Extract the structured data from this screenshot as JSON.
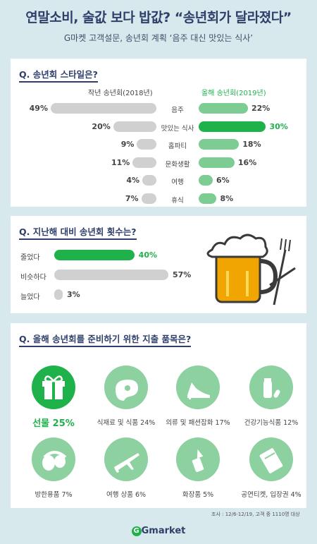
{
  "header": {
    "title": "연말소비, 술값 보다 밥값? “송년회가 달라졌다”",
    "subtitle": "G마켓 고객설문, 송년회 계획 ‘음주 대신 맛있는 식사’"
  },
  "q1": {
    "question": "Q. 송년회 스타일은?",
    "left_header": "작년 송년회(2018년)",
    "right_header": "올해 송년회(2019년)",
    "rows": [
      {
        "label": "음주",
        "prev": 49,
        "prev_text": "49%",
        "curr": 22,
        "curr_text": "22%"
      },
      {
        "label": "맛있는 식사",
        "prev": 20,
        "prev_text": "20%",
        "curr": 30,
        "curr_text": "30%"
      },
      {
        "label": "홈파티",
        "prev": 9,
        "prev_text": "9%",
        "curr": 18,
        "curr_text": "18%"
      },
      {
        "label": "문화생활",
        "prev": 11,
        "prev_text": "11%",
        "curr": 16,
        "curr_text": "16%"
      },
      {
        "label": "여행",
        "prev": 4,
        "prev_text": "4%",
        "curr": 6,
        "curr_text": "6%"
      },
      {
        "label": "휴식",
        "prev": 7,
        "prev_text": "7%",
        "curr": 8,
        "curr_text": "8%"
      }
    ]
  },
  "q2": {
    "question": "Q. 지난해 대비 송년회 횟수는?",
    "rows": [
      {
        "label": "줄었다",
        "value": 40,
        "text": "40%"
      },
      {
        "label": "비슷하다",
        "value": 57,
        "text": "57%"
      },
      {
        "label": "늘었다",
        "value": 3,
        "text": "3%"
      }
    ]
  },
  "q3": {
    "question": "Q. 올해 송년회를 준비하기 위한 지출 품목은?",
    "items": [
      {
        "label": "선물 25%",
        "icon": "gift-icon"
      },
      {
        "label": "식재료 및 식품 24%",
        "icon": "steak-icon"
      },
      {
        "label": "의류 및 패션잡화 17%",
        "icon": "shoe-icon"
      },
      {
        "label": "건강기능식품 12%",
        "icon": "supplement-icon"
      },
      {
        "label": "방한용품 7%",
        "icon": "earmuff-icon"
      },
      {
        "label": "여행 상품 6%",
        "icon": "airplane-icon"
      },
      {
        "label": "화장품 5%",
        "icon": "lipstick-icon"
      },
      {
        "label": "공연티켓, 입장권 4%",
        "icon": "ticket-icon"
      }
    ]
  },
  "footer": {
    "note": "조사 : 12/6-12/19, 고객 중 1110명 대상",
    "brand": "Gmarket"
  },
  "colors": {
    "navy": "#2f3f6b",
    "green_highlight": "#1fb14a",
    "green_light": "#7dcc94",
    "grey_bar": "#d0d0d0",
    "background": "#d7e9ec"
  }
}
